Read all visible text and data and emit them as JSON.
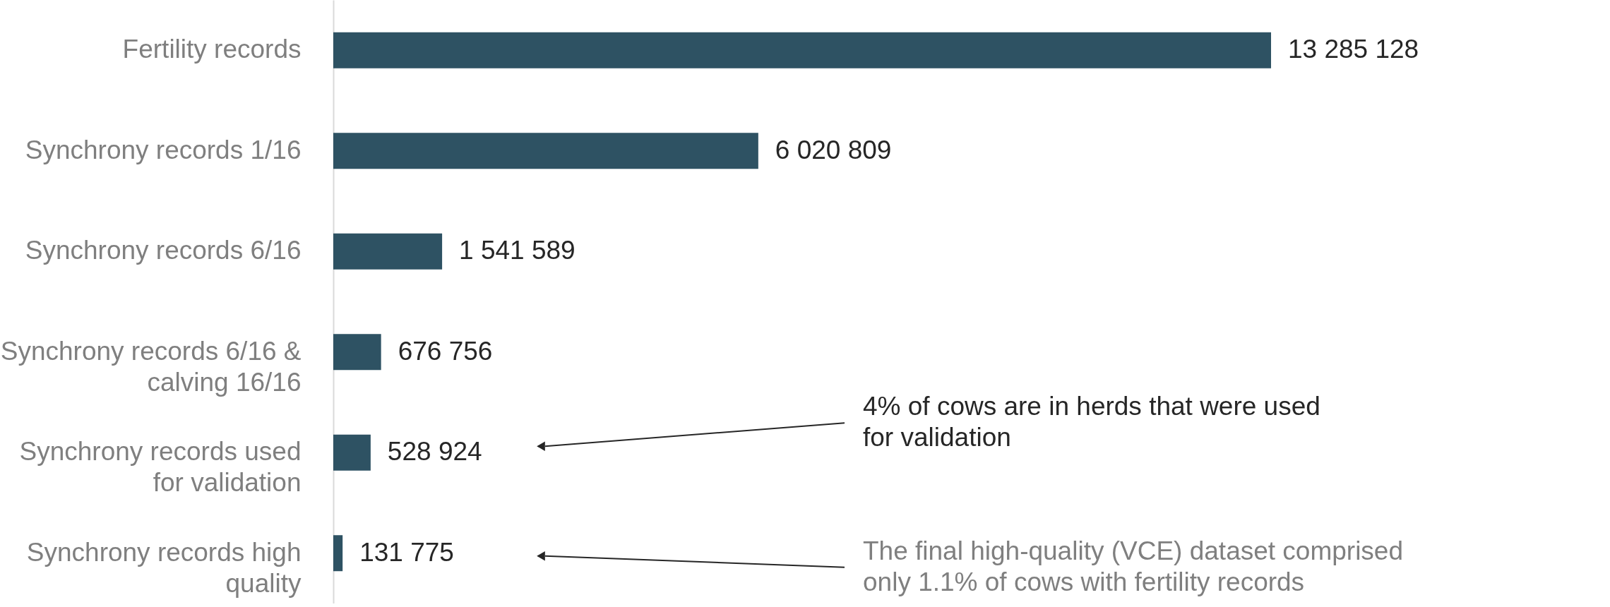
{
  "chart_data": {
    "type": "bar",
    "orientation": "horizontal",
    "categories": [
      "Fertility records",
      "Synchrony records 1/16",
      "Synchrony records 6/16",
      "Synchrony records 6/16 & calving 16/16",
      "Synchrony records used for validation",
      "Synchrony records high quality"
    ],
    "values": [
      13285128,
      6020809,
      1541589,
      676756,
      528924,
      131775
    ],
    "value_labels": [
      "13 285 128",
      "6 020 809",
      "1 541 589",
      "676 756",
      "528 924",
      "131 775"
    ],
    "color": "#2e5263",
    "annotations": [
      "4% of cows are in herds that were used for validation",
      "The final high-quality (VCE) dataset comprised only 1.1% of cows with fertility records"
    ],
    "grid": false
  }
}
